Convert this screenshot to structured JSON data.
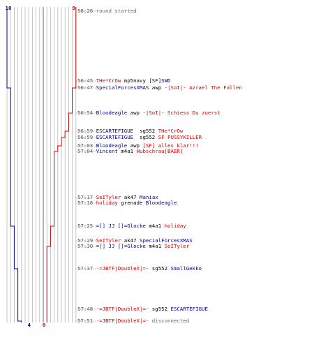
{
  "chart_data": {
    "type": "line",
    "title": "",
    "xlabel": "",
    "ylabel": "",
    "team_colors": {
      "blue": "#0000a0",
      "red": "#d00000",
      "center": "#808080"
    },
    "blue_start": 10,
    "red_start": 9,
    "blue_end": 4,
    "red_end": 0,
    "series": [
      {
        "values": [
          10,
          10,
          9,
          9,
          9,
          9,
          9,
          9,
          9,
          9,
          8,
          8,
          8,
          7,
          7,
          6,
          5,
          5,
          4,
          4
        ]
      },
      {
        "values": [
          9,
          9,
          8,
          7,
          6,
          5,
          4,
          3,
          3,
          3,
          2,
          2,
          1,
          1,
          1,
          1,
          0,
          0,
          0,
          0
        ]
      }
    ]
  },
  "events": [
    {
      "time": "56:26",
      "parts": [
        {
          "text": "round started",
          "c": "gray"
        }
      ]
    },
    {
      "time": "56:45",
      "parts": [
        {
          "text": "THe*CrOw",
          "c": "red"
        },
        {
          "text": " mp5navy ",
          "c": "blk"
        },
        {
          "text": "[SF]SWD",
          "c": "blue"
        }
      ]
    },
    {
      "time": "56:47",
      "parts": [
        {
          "text": "SpecialForcesXMAS",
          "c": "blue"
        },
        {
          "text": " awp ",
          "c": "blk"
        },
        {
          "text": "-|SoI|- Azrael The Fallen",
          "c": "red"
        }
      ]
    },
    {
      "time": "56:54",
      "parts": [
        {
          "text": "Bloodeagle",
          "c": "blue"
        },
        {
          "text": " awp ",
          "c": "blk"
        },
        {
          "text": "-|SoI|- Schiess Du zuerst",
          "c": "red"
        }
      ]
    },
    {
      "time": "56:59",
      "parts": [
        {
          "text": "ESCARTEFIGUE",
          "c": "blue"
        },
        {
          "text": "  sg552 ",
          "c": "blk"
        },
        {
          "text": "THe*CrOw",
          "c": "red"
        }
      ]
    },
    {
      "time": "56:59",
      "parts": [
        {
          "text": "ESCARTEFIGUE",
          "c": "blue"
        },
        {
          "text": "  sg552 ",
          "c": "blk"
        },
        {
          "text": "SF PUSSYKILLER",
          "c": "red"
        }
      ]
    },
    {
      "time": "57:03",
      "parts": [
        {
          "text": "Bloodeagle",
          "c": "blue"
        },
        {
          "text": " awp ",
          "c": "blk"
        },
        {
          "text": "[SF] alles klar!!!",
          "c": "red"
        }
      ]
    },
    {
      "time": "57:04",
      "parts": [
        {
          "text": "Vincent",
          "c": "blue"
        },
        {
          "text": " m4a1 ",
          "c": "blk"
        },
        {
          "text": "Hubschrau[BAER]",
          "c": "red"
        }
      ]
    },
    {
      "time": "57:17",
      "parts": [
        {
          "text": "SeITyler",
          "c": "red"
        },
        {
          "text": " ak47 ",
          "c": "blk"
        },
        {
          "text": "Maniax",
          "c": "blue"
        }
      ]
    },
    {
      "time": "57:18",
      "parts": [
        {
          "text": "holiday",
          "c": "red"
        },
        {
          "text": " grenade ",
          "c": "blk"
        },
        {
          "text": "Bloodeagle",
          "c": "blue"
        }
      ]
    },
    {
      "time": "57:25",
      "parts": [
        {
          "text": "=[] JJ []=Glocke",
          "c": "blue"
        },
        {
          "text": " m4a1 ",
          "c": "blk"
        },
        {
          "text": "holiday",
          "c": "red"
        }
      ]
    },
    {
      "time": "57:29",
      "parts": [
        {
          "text": "SeITyler",
          "c": "red"
        },
        {
          "text": " ak47 ",
          "c": "blk"
        },
        {
          "text": "SpecialForcesXMAS",
          "c": "blue"
        }
      ]
    },
    {
      "time": "57:30",
      "parts": [
        {
          "text": "=[] JJ []=Glocke",
          "c": "blue"
        },
        {
          "text": " m4a1 ",
          "c": "blk"
        },
        {
          "text": "SeITyler",
          "c": "red"
        }
      ]
    },
    {
      "time": "57:37",
      "parts": [
        {
          "text": "-=JBTF|DoubleX|=-",
          "c": "red"
        },
        {
          "text": " sg552 ",
          "c": "blk"
        },
        {
          "text": "SmallGekko",
          "c": "blue"
        }
      ]
    },
    {
      "time": "57:48",
      "parts": [
        {
          "text": "-=JBTF|DoubleX|=-",
          "c": "red"
        },
        {
          "text": " sg552 ",
          "c": "blk"
        },
        {
          "text": "ESCARTEFIGUE",
          "c": "blue"
        }
      ]
    },
    {
      "time": "57:51",
      "parts": [
        {
          "text": "-=JBTF|DoubleX|=-",
          "c": "red"
        },
        {
          "text": " disconnected",
          "c": "gray"
        }
      ]
    }
  ]
}
